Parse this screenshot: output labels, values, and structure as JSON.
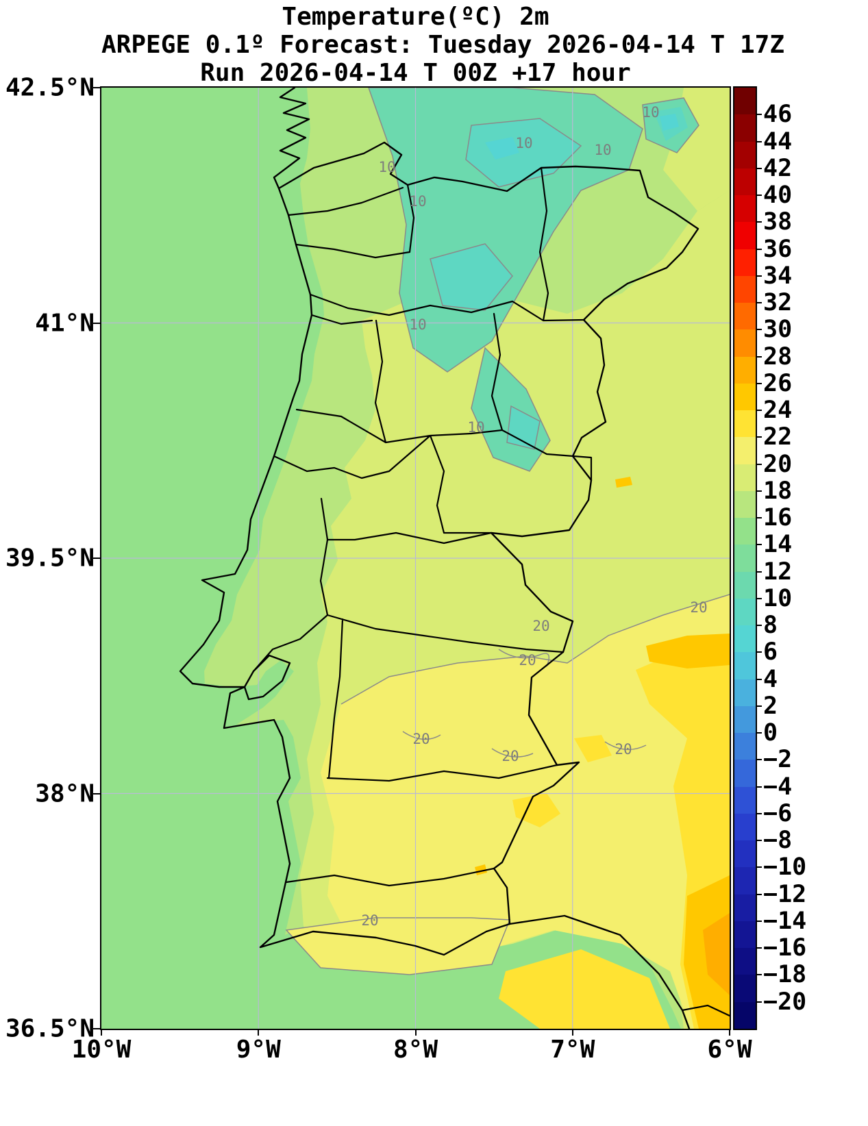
{
  "title": {
    "line1": "Temperature(ºC) 2m",
    "line2": "ARPEGE 0.1º Forecast: Tuesday 2026-04-14 T 17Z",
    "line3": "Run 2026-04-14 T 00Z +17 hour"
  },
  "axes": {
    "y_tick_labels": [
      "42.5°N",
      "41°N",
      "39.5°N",
      "38°N",
      "36.5°N"
    ],
    "x_tick_labels": [
      "10°W",
      "9°W",
      "8°W",
      "7°W",
      "6°W"
    ]
  },
  "map": {
    "gridline_color": "#b9b9d6",
    "boundary_color": "#000000",
    "contour_line_color": "#8a8a8a",
    "contour_label_color": "#7d7d7d",
    "contour_label_10": "10",
    "contour_label_20": "20",
    "ocean_band_index": 16
  },
  "colorbar": {
    "tick_labels": [
      "46",
      "44",
      "42",
      "40",
      "38",
      "36",
      "34",
      "32",
      "30",
      "28",
      "26",
      "24",
      "22",
      "20",
      "18",
      "16",
      "14",
      "12",
      "10",
      "8",
      "6",
      "4",
      "2",
      "0",
      "−2",
      "−4",
      "−6",
      "−8",
      "−10",
      "−12",
      "−14",
      "−16",
      "−18",
      "−20"
    ],
    "band_colors": [
      "#700000",
      "#8b0000",
      "#a30000",
      "#bd0000",
      "#d60000",
      "#f00000",
      "#ff2000",
      "#ff4500",
      "#ff6a00",
      "#ff8c00",
      "#ffae00",
      "#ffc800",
      "#ffe333",
      "#f4ef6d",
      "#d9ec74",
      "#b8e67e",
      "#93e18a",
      "#7edd9b",
      "#6cd9ae",
      "#5ed7c2",
      "#55d5d3",
      "#4fc6db",
      "#4ab1de",
      "#4399dd",
      "#3c80dc",
      "#3568da",
      "#2e51d6",
      "#283fce",
      "#2230c0",
      "#1d26b2",
      "#181da3",
      "#131594",
      "#0e0e85",
      "#090976",
      "#050568"
    ]
  }
}
